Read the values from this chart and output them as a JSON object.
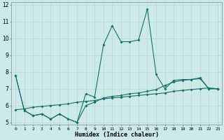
{
  "xlabel": "Humidex (Indice chaleur)",
  "bg_color": "#cceaea",
  "line_color": "#1a6e6a",
  "grid_color": "#b8d8d8",
  "x_values": [
    0,
    1,
    2,
    3,
    4,
    5,
    6,
    7,
    8,
    9,
    10,
    11,
    12,
    13,
    14,
    15,
    16,
    17,
    18,
    19,
    20,
    21,
    22,
    23
  ],
  "series1": [
    7.8,
    5.7,
    5.4,
    5.5,
    5.2,
    5.5,
    5.2,
    5.0,
    6.7,
    6.5,
    9.6,
    10.75,
    9.8,
    9.8,
    9.9,
    11.75,
    7.85,
    7.0,
    7.5,
    7.55,
    7.55,
    7.65,
    7.0,
    7.0
  ],
  "series2": [
    7.8,
    5.7,
    5.4,
    5.5,
    5.2,
    5.5,
    5.2,
    5.0,
    6.0,
    6.2,
    6.45,
    6.55,
    6.6,
    6.7,
    6.75,
    6.85,
    6.95,
    7.2,
    7.4,
    7.5,
    7.55,
    7.6,
    7.0,
    7.0
  ],
  "series3": [
    5.75,
    5.8,
    5.9,
    5.95,
    6.0,
    6.05,
    6.1,
    6.2,
    6.25,
    6.3,
    6.4,
    6.45,
    6.5,
    6.55,
    6.6,
    6.65,
    6.7,
    6.75,
    6.85,
    6.9,
    6.95,
    7.0,
    7.05,
    7.0
  ],
  "ylim": [
    5,
    12
  ],
  "xlim": [
    -0.5,
    23.5
  ],
  "yticks": [
    5,
    6,
    7,
    8,
    9,
    10,
    11,
    12
  ],
  "xticks": [
    0,
    1,
    2,
    3,
    4,
    5,
    6,
    7,
    8,
    9,
    10,
    11,
    12,
    13,
    14,
    15,
    16,
    17,
    18,
    19,
    20,
    21,
    22,
    23
  ]
}
